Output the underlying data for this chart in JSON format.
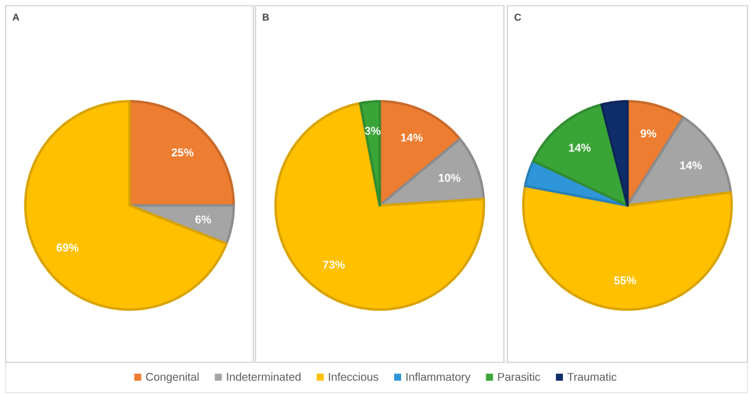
{
  "chart_data": [
    {
      "type": "pie",
      "title": "A",
      "categories": [
        null,
        null,
        null
      ],
      "values": [
        25,
        6,
        69
      ],
      "colors": [
        "#ed7d31",
        "#a5a5a5",
        "#ffc000"
      ],
      "value_labels": [
        "25%",
        "6%",
        "69%"
      ]
    },
    {
      "type": "pie",
      "title": "B",
      "categories": [
        null,
        null,
        null,
        null
      ],
      "values": [
        14,
        10,
        73,
        3
      ],
      "colors": [
        "#ed7d31",
        "#a5a5a5",
        "#ffc000",
        "#3aa537"
      ],
      "value_labels": [
        "14%",
        "10%",
        "73%",
        "3%"
      ]
    },
    {
      "type": "pie",
      "title": "C",
      "categories": [
        "Congenital",
        "Indeterminated",
        "Infeccious",
        "Inflammatory",
        "Parasitic",
        "Traumatic"
      ],
      "values": [
        9,
        14,
        55,
        4,
        14,
        4
      ],
      "colors": [
        "#ed7d31",
        "#a5a5a5",
        "#ffc000",
        "#2e96d8",
        "#3aa537",
        "#0e2d69"
      ],
      "value_labels": [
        "9%",
        "14%",
        "55%",
        null,
        "14%",
        null
      ],
      "legend": "bottom"
    }
  ]
}
